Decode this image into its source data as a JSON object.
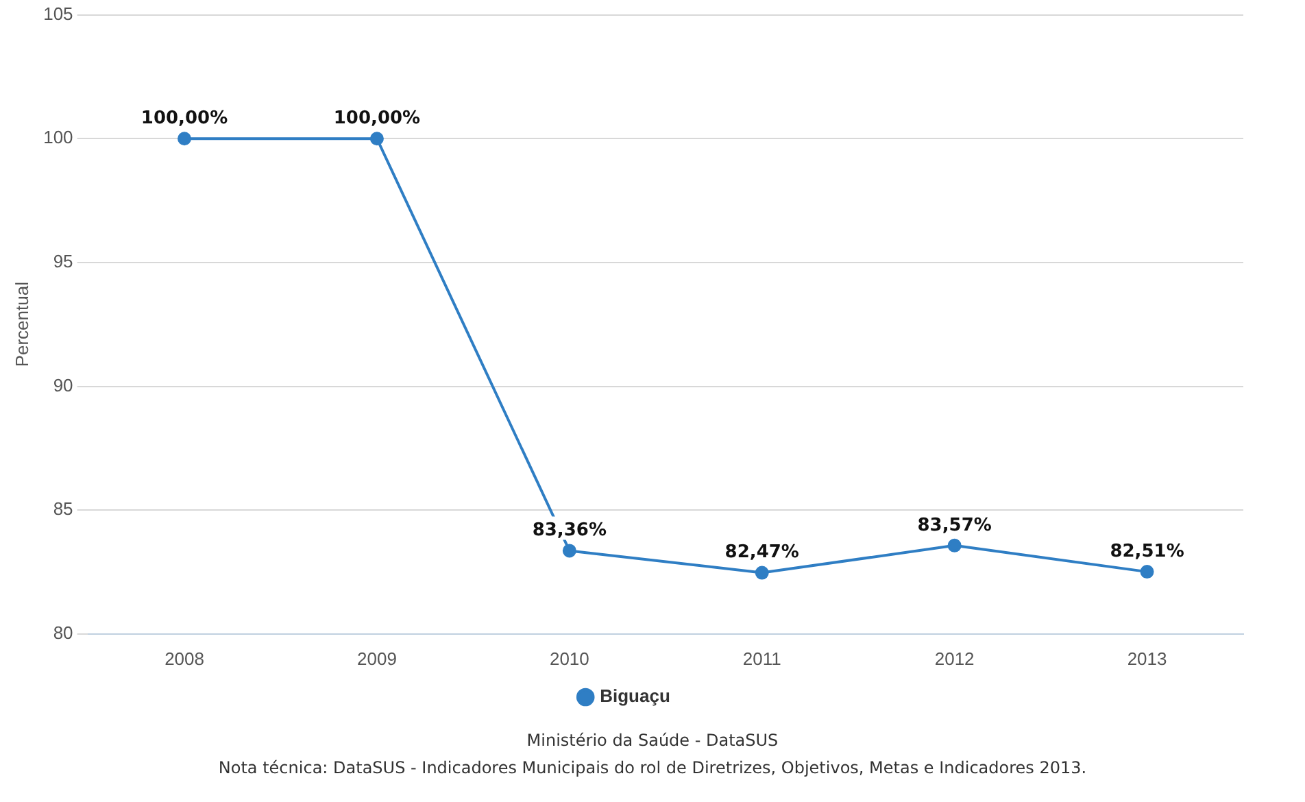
{
  "chart_data": {
    "type": "line",
    "ylabel": "Percentual",
    "categories": [
      "2008",
      "2009",
      "2010",
      "2011",
      "2012",
      "2013"
    ],
    "series": [
      {
        "name": "Biguaçu",
        "color": "#2f7ec4",
        "values": [
          100,
          100,
          83.36,
          82.47,
          83.57,
          82.51
        ],
        "value_labels": [
          "100,00%",
          "100,00%",
          "83,36%",
          "82,47%",
          "83,57%",
          "82,51%"
        ]
      }
    ],
    "ylim": [
      80,
      105
    ],
    "yticks": [
      80,
      85,
      90,
      95,
      100,
      105
    ],
    "grid": "y",
    "legend": "bottom",
    "marker": "circle",
    "line_style": "solid",
    "annotations": [
      "Ministério da Saúde - DataSUS",
      "Nota técnica: DataSUS - Indicadores Municipais do rol de Diretrizes, Objetivos, Metas e Indicadores 2013."
    ]
  }
}
